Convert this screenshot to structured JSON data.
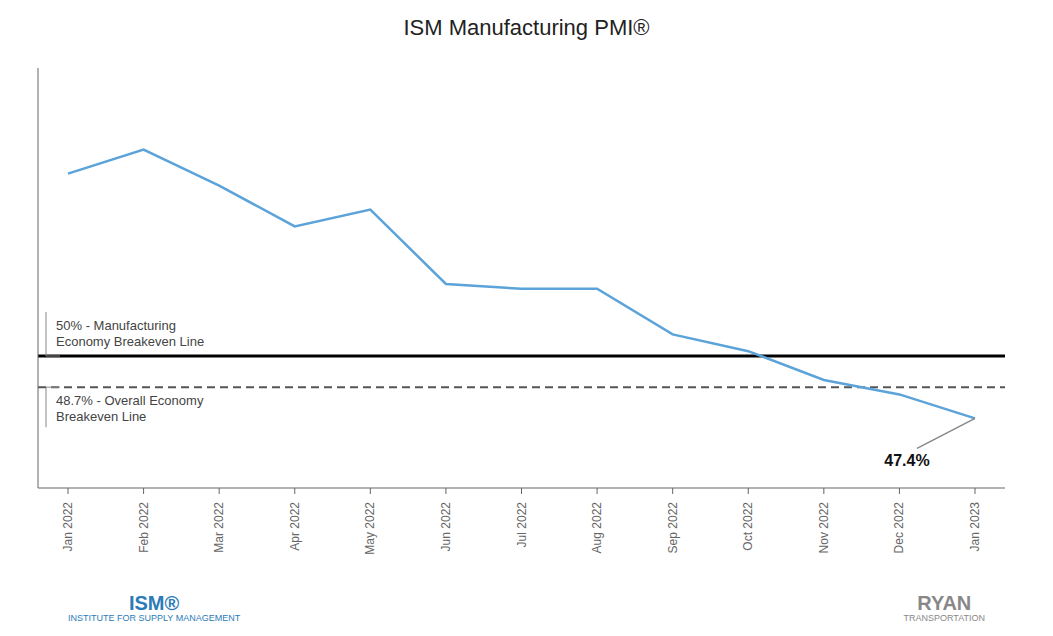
{
  "chart_data": {
    "type": "line",
    "title": "ISM Manufacturing PMI®",
    "categories": [
      "Jan 2022",
      "Feb 2022",
      "Mar 2022",
      "Apr 2022",
      "May 2022",
      "Jun 2022",
      "Jul 2022",
      "Aug 2022",
      "Sep 2022",
      "Oct 2022",
      "Nov 2022",
      "Dec 2022",
      "Jan 2023"
    ],
    "values": [
      57.6,
      58.6,
      57.1,
      55.4,
      56.1,
      53.0,
      52.8,
      52.8,
      50.9,
      50.2,
      49.0,
      48.4,
      47.4
    ],
    "color": "#5BA3D9",
    "ylim": [
      44.5,
      62
    ],
    "tick_labels": "x",
    "grid": false,
    "hlines": [
      {
        "value": 50,
        "label": "50% - Manufacturing\nEconomy Breakeven Line",
        "line_style": "solid",
        "color": "#000000"
      },
      {
        "value": 48.7,
        "label": "48.7% - Overall Economy\nBreakeven Line",
        "line_style": "dashed",
        "color": "#555555"
      }
    ],
    "annotations": [
      {
        "text": "47.4%",
        "x": "Jan 2023",
        "y": 47.4
      }
    ],
    "footer": [
      {
        "lines": [
          "ISM®",
          "INSTITUTE FOR SUPPLY MANAGEMENT"
        ],
        "color": "#2B7BB9"
      },
      {
        "lines": [
          "RYAN",
          "TRANSPORTATION"
        ],
        "color": "#888888"
      }
    ]
  }
}
